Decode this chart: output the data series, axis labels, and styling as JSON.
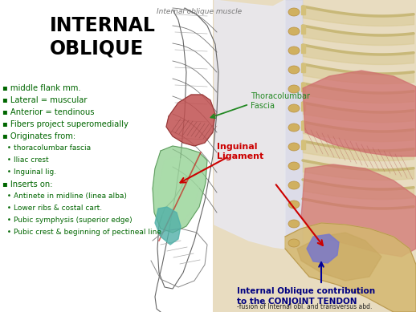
{
  "bg_color": "#ffffff",
  "title_small": "Internal oblique muscle",
  "title_large_line1": "INTERNAL",
  "title_large_line2": "OBLIQUE",
  "bullet_points": [
    "▪ middle flank mm.",
    "▪ Lateral = muscular",
    "▪ Anterior = tendinous",
    "▪ Fibers project superomedially",
    "▪ Originates from:",
    "  • thoracolumbar fascia",
    "  • Iliac crest",
    "  • Inguinal lig.",
    "▪ Inserts on:",
    "  • Antinete in midline (linea alba)",
    "  • Lower ribs & costal cart.",
    "  • Pubic symphysis (superior edge)",
    "  • Pubic crest & beginning of pectineal line"
  ],
  "label_thoracolumbar": "Thoracolumbar\nFascia",
  "label_inguinal": "Inguinal\nLigament",
  "label_conjoint_title": "Internal Oblique contribution\nto the CONJOINT TENDON",
  "label_conjoint_sub": "-fusion of Internal obl. and transversus abd.\naponeuroses along pubic crest & portion of\npectineal line",
  "color_title_large": "#000000",
  "color_title_small": "#777777",
  "color_bullets": "#006600",
  "color_inguinal": "#cc0000",
  "color_thoracolumbar": "#228822",
  "color_conjoint_title": "#000080",
  "color_conjoint_sub": "#222222",
  "fig_width": 5.18,
  "fig_height": 3.89,
  "dpi": 100
}
